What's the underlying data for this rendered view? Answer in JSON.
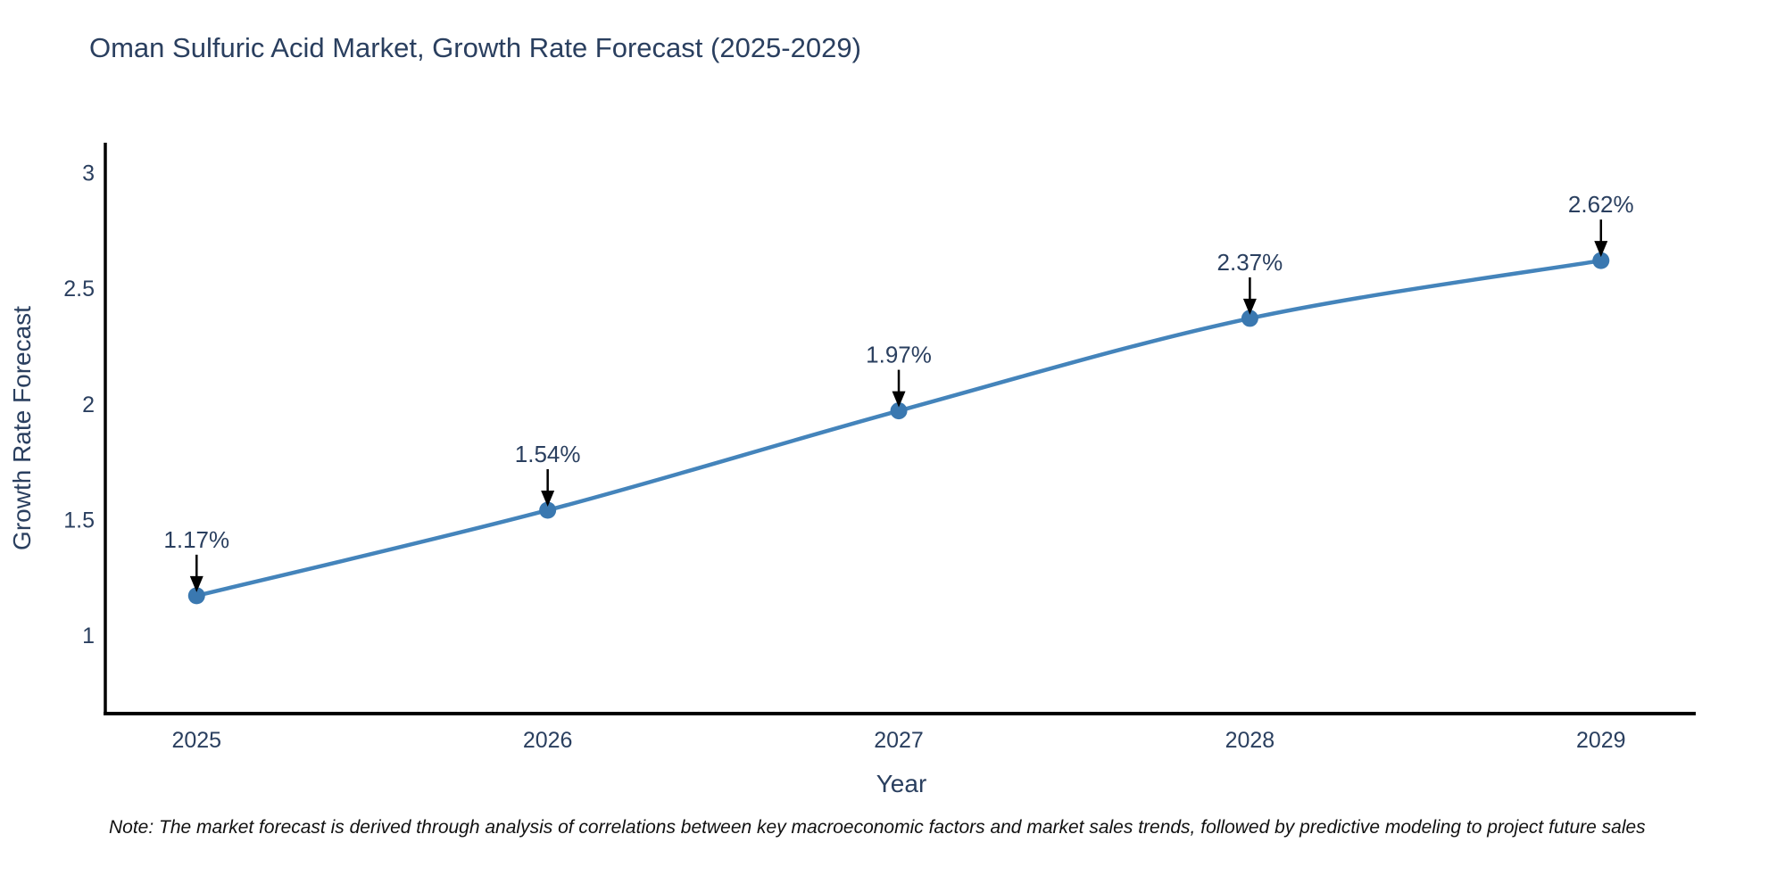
{
  "title": "Oman Sulfuric Acid Market, Growth Rate Forecast (2025-2029)",
  "note": "Note: The market forecast is derived through analysis of correlations between key macroeconomic factors and market sales trends, followed by predictive modeling to project future sales",
  "chart_data": {
    "type": "line",
    "title": "Oman Sulfuric Acid Market, Growth Rate Forecast (2025-2029)",
    "xlabel": "Year",
    "ylabel": "Growth Rate Forecast",
    "x": [
      2025,
      2026,
      2027,
      2028,
      2029
    ],
    "series": [
      {
        "name": "Growth Rate Forecast",
        "values": [
          1.17,
          1.54,
          1.97,
          2.37,
          2.62
        ]
      }
    ],
    "point_labels": [
      "1.17%",
      "1.54%",
      "1.97%",
      "2.37%",
      "2.62%"
    ],
    "xticks": [
      "2025",
      "2026",
      "2027",
      "2028",
      "2029"
    ],
    "yticks": [
      "1",
      "1.5",
      "2",
      "2.5",
      "3"
    ],
    "ylim": [
      0.66,
      3.13
    ],
    "xlim": [
      2024.74,
      2029.27
    ],
    "grid": false,
    "legend_position": "none",
    "line_shape": "spline",
    "colors": {
      "line": "#4484bb",
      "marker": "#3a78b0",
      "text": "#2a3f5f",
      "axis": "#000000",
      "annotation_arrow": "#000000",
      "note_text": "#111111",
      "background": "#ffffff"
    }
  }
}
